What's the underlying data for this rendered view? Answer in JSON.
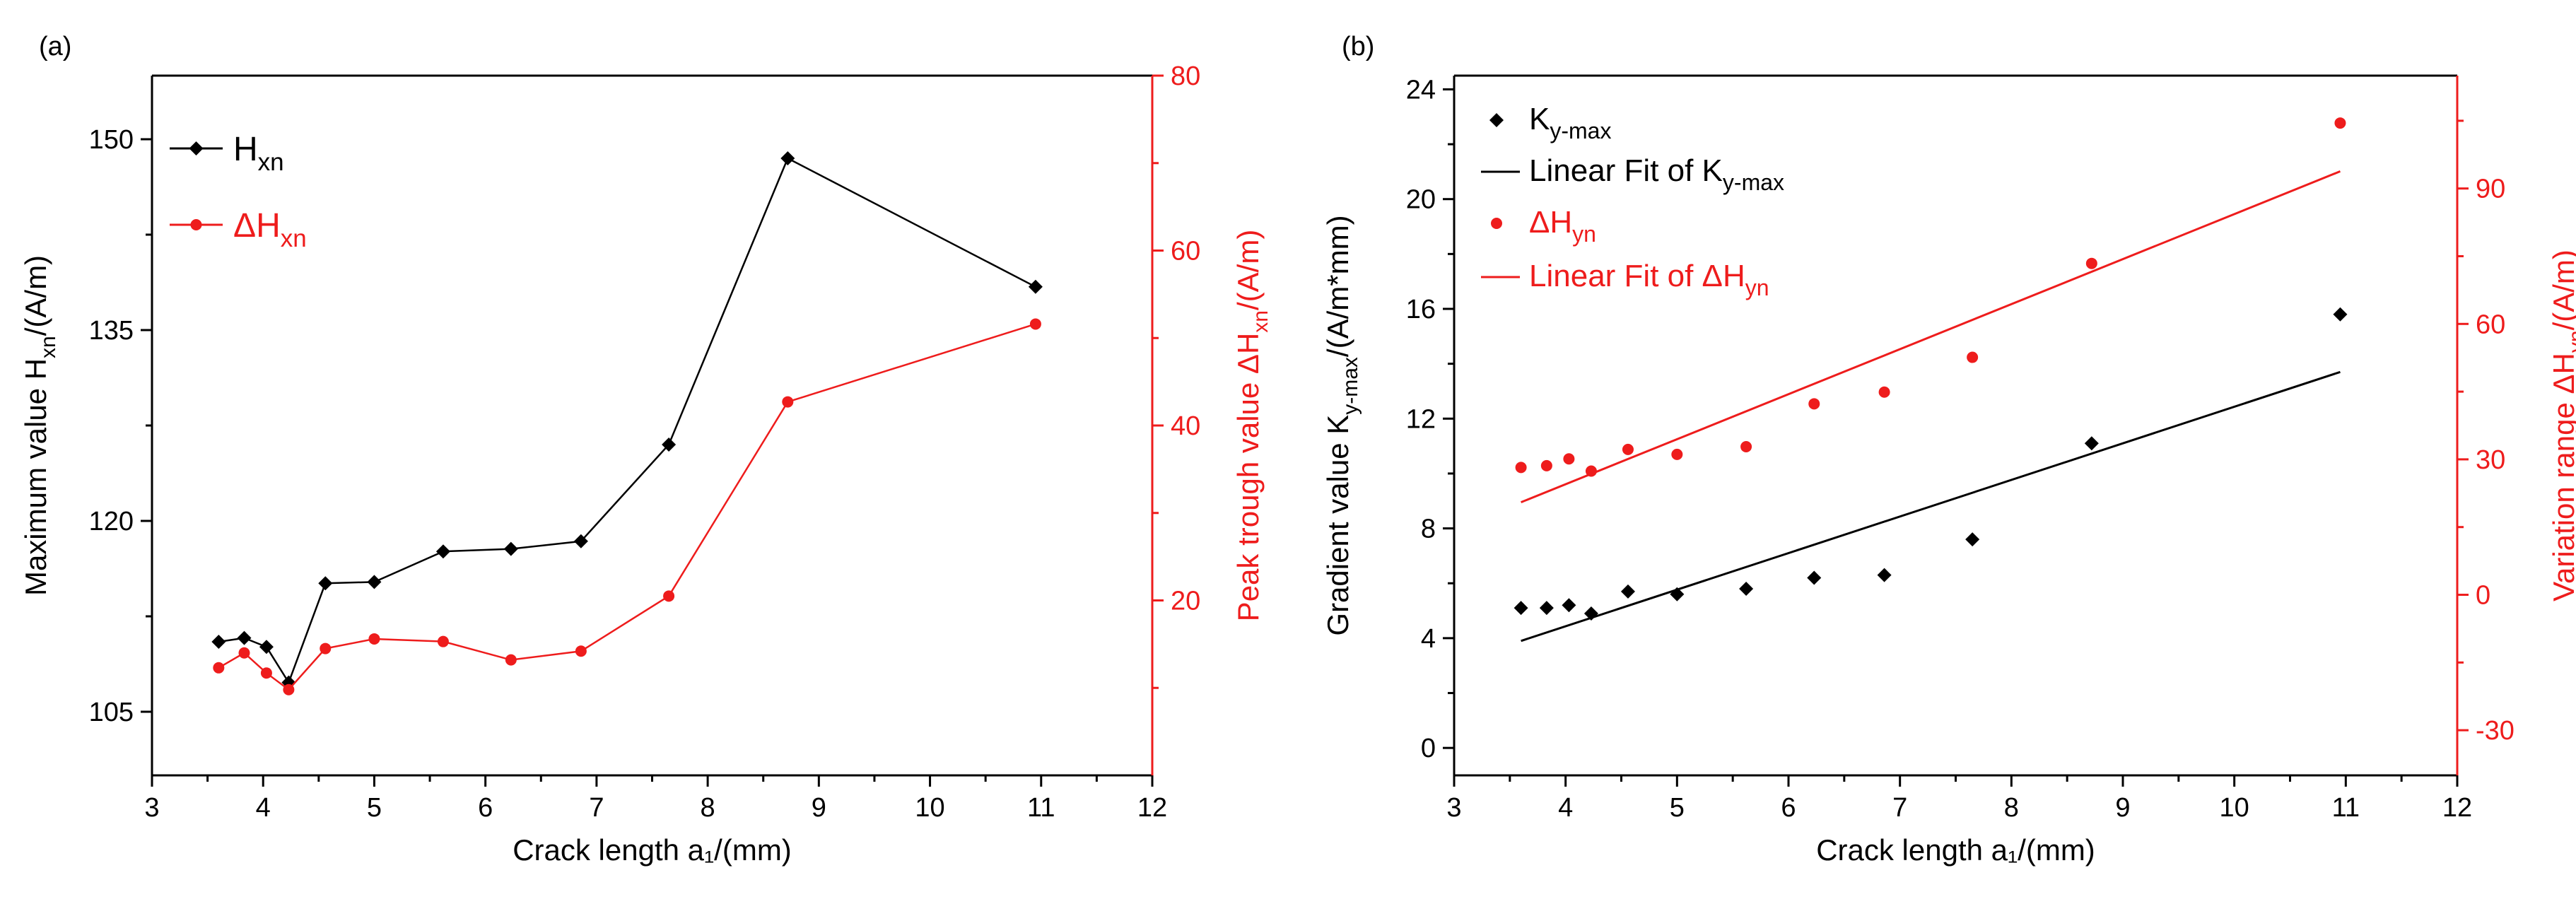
{
  "chart_data": [
    {
      "panel_label": "(a)",
      "type": "line",
      "xlabel": "Crack length a₁/(mm)",
      "xlim": [
        3,
        12
      ],
      "xticks": [
        "3",
        "4",
        "5",
        "6",
        "7",
        "8",
        "9",
        "10",
        "11",
        "12"
      ],
      "ylabel": {
        "pre": "Maximum value H",
        "sub": "xn",
        "post": "/(A/m)"
      },
      "ylim": [
        100,
        155
      ],
      "yticks": [
        "105",
        "120",
        "135",
        "150"
      ],
      "y2label": {
        "pre": "Peak trough value ΔH",
        "sub": "xn",
        "post": "/(A/m)"
      },
      "y2lim": [
        0,
        80
      ],
      "y2ticks": [
        "20",
        "40",
        "60",
        "80"
      ],
      "x": [
        3.6,
        3.83,
        4.03,
        4.23,
        4.56,
        5.0,
        5.62,
        6.23,
        6.86,
        7.65,
        8.72,
        10.95
      ],
      "series": [
        {
          "name": "H",
          "sub": "xn",
          "axis": "left",
          "marker": "diamond",
          "color": "#000000",
          "values": [
            110.5,
            110.8,
            110.1,
            107.3,
            115.1,
            115.2,
            117.6,
            117.8,
            118.4,
            126.0,
            148.5,
            138.4
          ]
        },
        {
          "name": "ΔH",
          "sub": "xn",
          "axis": "right",
          "marker": "circle",
          "color": "#ee1c1c",
          "values": [
            12.3,
            14.0,
            11.7,
            9.8,
            14.5,
            15.6,
            15.3,
            13.2,
            14.2,
            20.5,
            42.7,
            51.6
          ]
        }
      ]
    },
    {
      "panel_label": "(b)",
      "type": "scatter",
      "xlabel": "Crack length a₁/(mm)",
      "xlim": [
        3,
        12
      ],
      "xticks": [
        "3",
        "4",
        "5",
        "6",
        "7",
        "8",
        "9",
        "10",
        "11",
        "12"
      ],
      "ylabel": {
        "pre": "Gradient value K",
        "sub": "y-max",
        "post": "/(A/m*mm)"
      },
      "ylim": [
        -1,
        24.5
      ],
      "yticks": [
        "0",
        "4",
        "8",
        "12",
        "16",
        "20",
        "24"
      ],
      "y2label": {
        "pre": "Variation range ΔH",
        "sub": "yn",
        "post": "/(A/m)"
      },
      "y2lim": [
        -40,
        115
      ],
      "y2ticks": [
        "-30",
        "0",
        "30",
        "60",
        "90"
      ],
      "x": [
        3.6,
        3.83,
        4.03,
        4.23,
        4.56,
        5.0,
        5.62,
        6.23,
        6.86,
        7.65,
        8.72,
        10.95
      ],
      "series": [
        {
          "name": "K",
          "sub": "y-max",
          "axis": "left",
          "marker": "diamond",
          "color": "#000000",
          "values": [
            5.1,
            5.1,
            5.2,
            4.9,
            5.7,
            5.6,
            5.8,
            6.2,
            6.3,
            7.6,
            11.1,
            15.8
          ]
        },
        {
          "name": "ΔH",
          "sub": "yn",
          "axis": "right",
          "marker": "circle",
          "color": "#ee1c1c",
          "values": [
            28.2,
            28.6,
            30.1,
            27.4,
            32.2,
            31.1,
            32.8,
            42.3,
            44.9,
            52.6,
            73.4,
            104.5
          ]
        }
      ],
      "fits": [
        {
          "name": "Linear Fit of K",
          "sub": "y-max",
          "axis": "left",
          "color": "#000000",
          "x": [
            3.6,
            10.95
          ],
          "y": [
            3.9,
            13.7
          ]
        },
        {
          "name": "Linear Fit of ΔH",
          "sub": "yn",
          "axis": "right",
          "color": "#ee1c1c",
          "x": [
            3.6,
            10.95
          ],
          "y": [
            20.5,
            93.8
          ]
        }
      ]
    }
  ]
}
